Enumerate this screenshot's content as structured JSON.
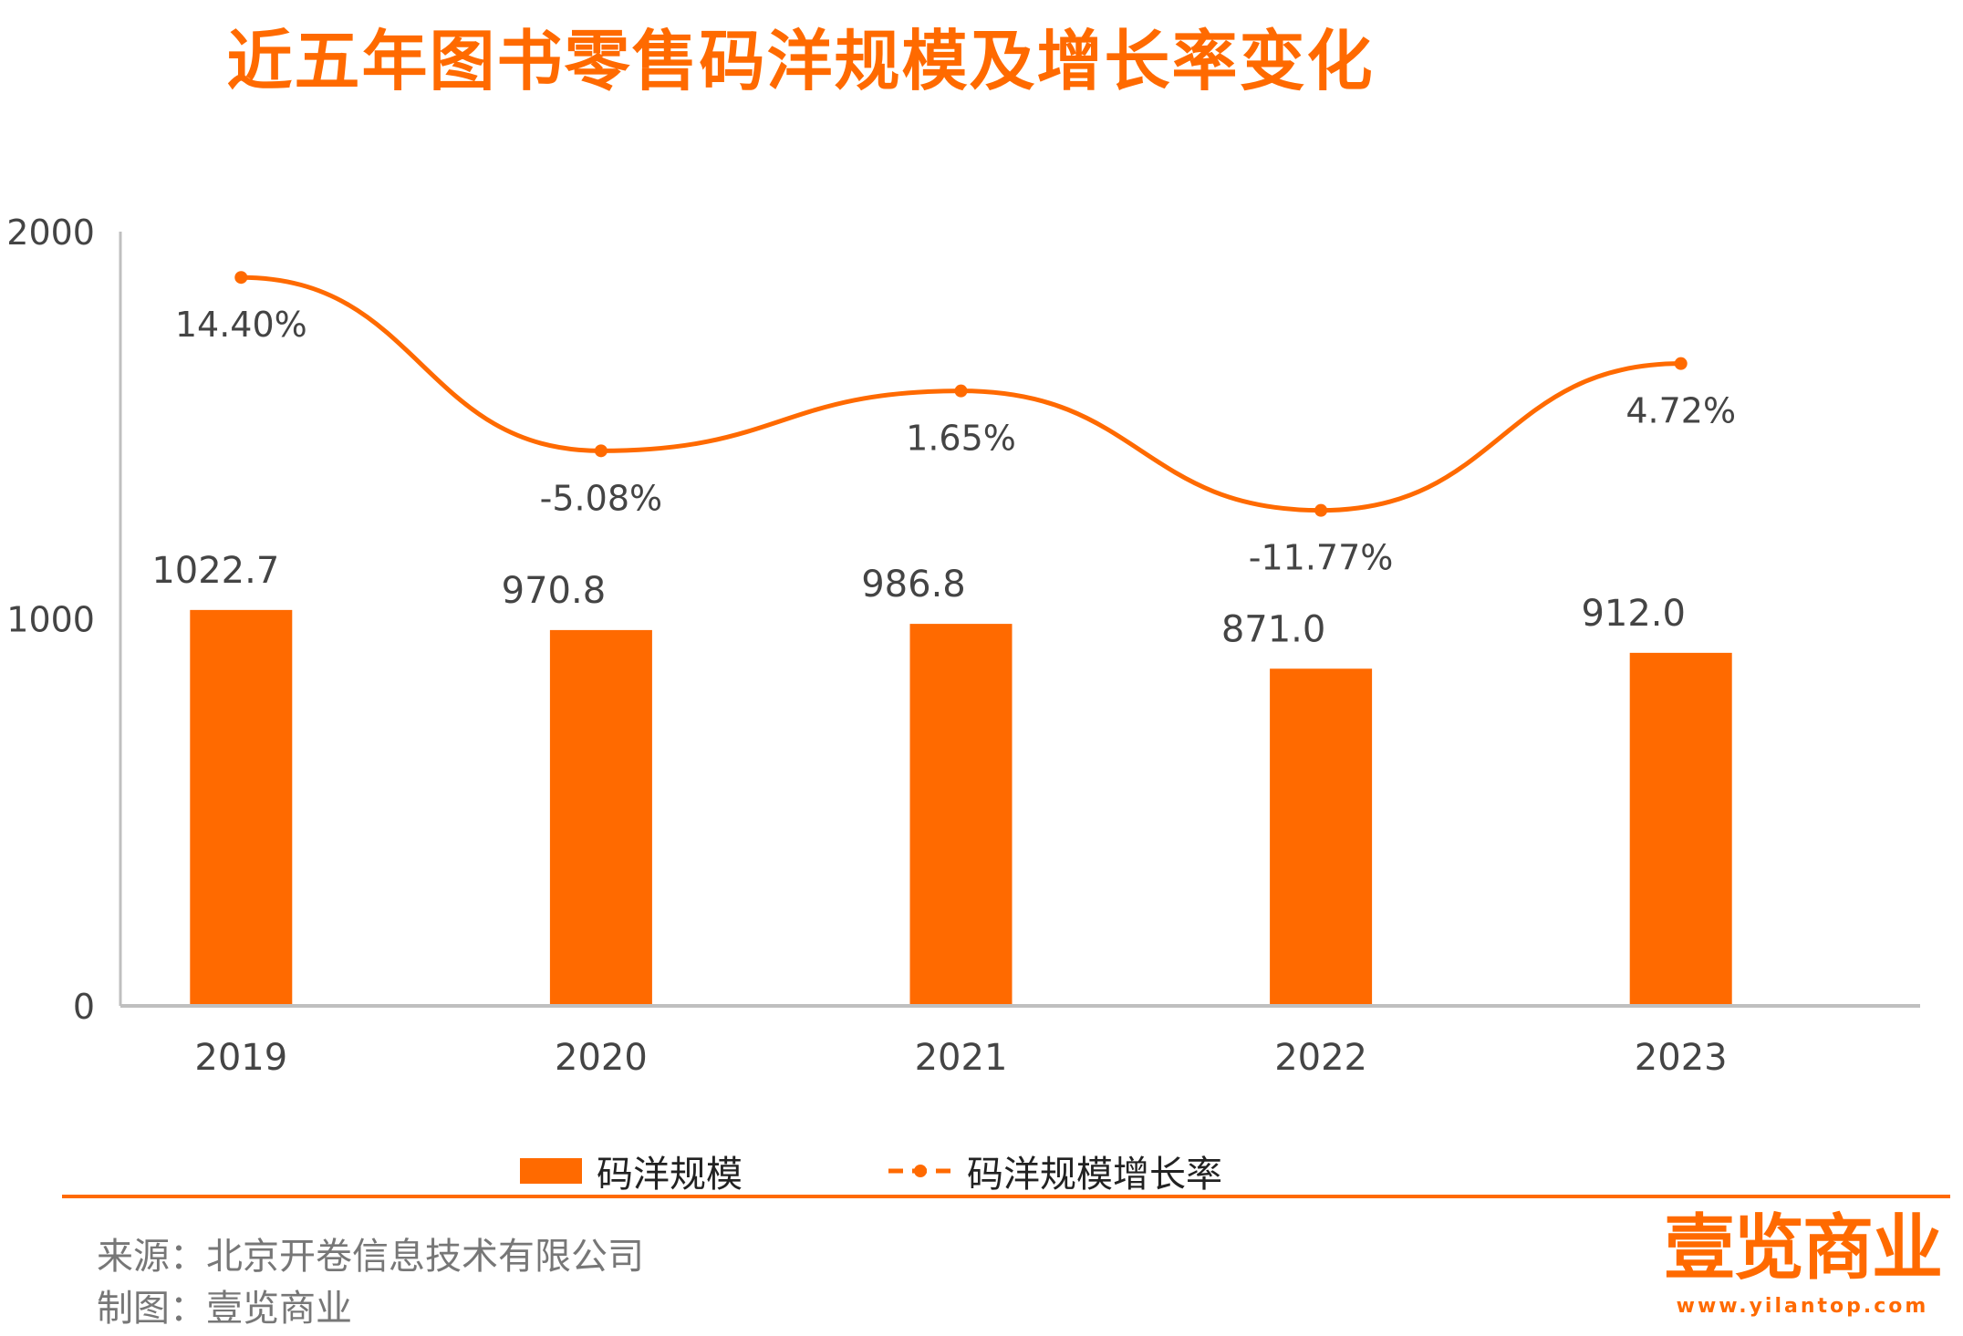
{
  "title": "近五年图书零售码洋规模及增长率变化",
  "colors": {
    "accent": "#ff6a00",
    "axis": "#bfbfbf",
    "text": "#333333"
  },
  "chart_data": {
    "type": "bar+line",
    "categories": [
      "2019",
      "2020",
      "2021",
      "2022",
      "2023"
    ],
    "y_axis": {
      "min": 0,
      "max": 2000,
      "ticks": [
        "0",
        "1000",
        "2000"
      ]
    },
    "series": [
      {
        "name": "码洋规模",
        "type": "bar",
        "values": [
          1022.7,
          970.8,
          986.8,
          871.0,
          912.0
        ],
        "labels": [
          "1022.7",
          "970.8",
          "986.8",
          "871.0",
          "912.0"
        ]
      },
      {
        "name": "码洋规模增长率",
        "type": "line",
        "values": [
          14.4,
          -5.08,
          1.65,
          -11.77,
          4.72
        ],
        "labels": [
          "14.40%",
          "-5.08%",
          "1.65%",
          "-11.77%",
          "4.72%"
        ]
      }
    ]
  },
  "legend": {
    "bar_label": "码洋规模",
    "line_label": "码洋规模增长率"
  },
  "footer": {
    "source": "来源：北京开卷信息技术有限公司",
    "made_by": "制图：壹览商业"
  },
  "brand": {
    "name": "壹览商业",
    "url": "www.yilantop.com"
  }
}
